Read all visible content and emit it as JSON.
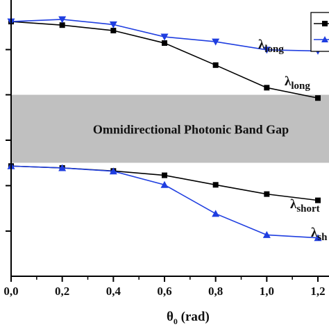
{
  "chart_data": {
    "type": "line",
    "xlabel_main": "θ",
    "xlabel_sub": "0",
    "xlabel_unit": " (rad)",
    "xlim": [
      0,
      1.2
    ],
    "ylim": [
      0,
      1
    ],
    "x_ticks": [
      "0,0",
      "0,2",
      "0,4",
      "0,6",
      "0,8",
      "1,0",
      "1,2"
    ],
    "band": {
      "label": "Omnidirectional  Photonic Band Gap",
      "y_low": 0.417,
      "y_high": 0.667,
      "color": "#c0c0c0"
    },
    "series": [
      {
        "marker": "square",
        "color": "#000000",
        "x": [
          0,
          0.2,
          0.4,
          0.6,
          0.8,
          1.0,
          1.2
        ],
        "y": [
          0.936,
          0.923,
          0.903,
          0.857,
          0.776,
          0.693,
          0.655
        ]
      },
      {
        "marker": "triangle-down",
        "color": "#1f3ee0",
        "x": [
          0,
          0.2,
          0.4,
          0.6,
          0.8,
          1.0,
          1.2
        ],
        "y": [
          0.936,
          0.944,
          0.925,
          0.88,
          0.862,
          0.832,
          0.828
        ]
      },
      {
        "marker": "square",
        "color": "#000000",
        "x": [
          0,
          0.2,
          0.4,
          0.6,
          0.8,
          1.0,
          1.2
        ],
        "y": [
          0.405,
          0.398,
          0.387,
          0.371,
          0.336,
          0.302,
          0.279
        ]
      },
      {
        "marker": "triangle-up",
        "color": "#1f3ee0",
        "x": [
          0,
          0.2,
          0.4,
          0.6,
          0.8,
          1.0,
          1.2
        ],
        "y": [
          0.405,
          0.398,
          0.386,
          0.336,
          0.23,
          0.152,
          0.141
        ]
      }
    ],
    "annotations": [
      {
        "base": "λ",
        "sub": "long",
        "series": 1
      },
      {
        "base": "λ",
        "sub": "long",
        "series": 0
      },
      {
        "base": "λ",
        "sub": "short",
        "series": 2
      },
      {
        "base": "λ",
        "sub": "sh",
        "series": 3
      }
    ],
    "legend": {
      "placement": "top-right",
      "partially_visible": true
    }
  }
}
